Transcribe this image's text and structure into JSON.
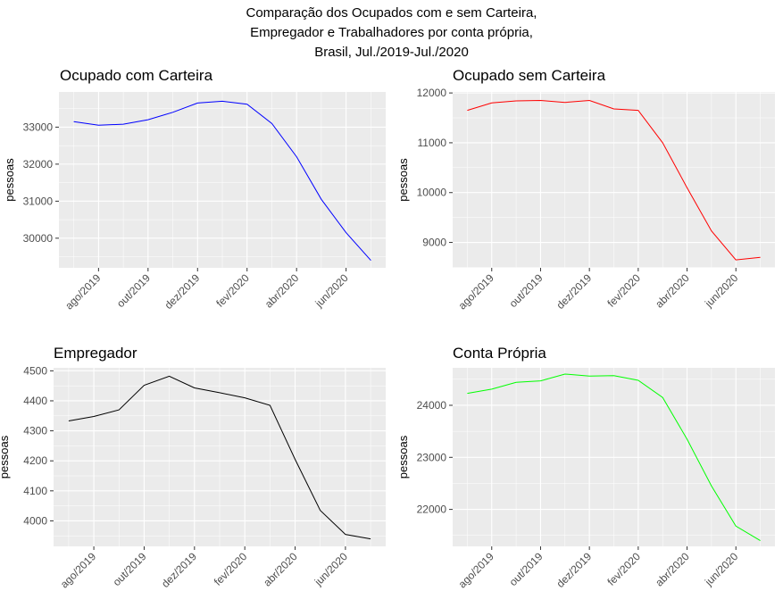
{
  "figure": {
    "title_lines": [
      "Comparação dos Ocupados com e sem Carteira,",
      "Empregador e Trabalhadores por conta própria,",
      "Brasil, Jul./2019-Jul./2020"
    ]
  },
  "chart_data": [
    {
      "type": "line",
      "title": "Ocupado com Carteira",
      "xlabel": "",
      "ylabel": "pessoas",
      "color": "#0000ff",
      "x": [
        "2019-07",
        "2019-08",
        "2019-09",
        "2019-10",
        "2019-11",
        "2019-12",
        "2020-01",
        "2020-02",
        "2020-03",
        "2020-04",
        "2020-05",
        "2020-06",
        "2020-07"
      ],
      "values": [
        33150,
        33050,
        33080,
        33200,
        33400,
        33650,
        33700,
        33620,
        33100,
        32200,
        31050,
        30150,
        29400
      ],
      "yticks": [
        30000,
        31000,
        32000,
        33000
      ],
      "ylim": [
        29200,
        33950
      ],
      "xticks": [
        "ago/2019",
        "out/2019",
        "dez/2019",
        "fev/2020",
        "abr/2020",
        "jun/2020"
      ],
      "grid": true
    },
    {
      "type": "line",
      "title": "Ocupado sem Carteira",
      "xlabel": "",
      "ylabel": "pessoas",
      "color": "#ff0000",
      "x": [
        "2019-07",
        "2019-08",
        "2019-09",
        "2019-10",
        "2019-11",
        "2019-12",
        "2020-01",
        "2020-02",
        "2020-03",
        "2020-04",
        "2020-05",
        "2020-06",
        "2020-07"
      ],
      "values": [
        11650,
        11800,
        11840,
        11850,
        11810,
        11850,
        11680,
        11650,
        11000,
        10100,
        9230,
        8650,
        8700
      ],
      "yticks": [
        9000,
        10000,
        11000,
        12000
      ],
      "ylim": [
        8490,
        12020
      ],
      "xticks": [
        "ago/2019",
        "out/2019",
        "dez/2019",
        "fev/2020",
        "abr/2020",
        "jun/2020"
      ],
      "grid": true
    },
    {
      "type": "line",
      "title": "Empregador",
      "xlabel": "",
      "ylabel": "pessoas",
      "color": "#000000",
      "x": [
        "2019-07",
        "2019-08",
        "2019-09",
        "2019-10",
        "2019-11",
        "2019-12",
        "2020-01",
        "2020-02",
        "2020-03",
        "2020-04",
        "2020-05",
        "2020-06",
        "2020-07"
      ],
      "values": [
        4333,
        4348,
        4370,
        4452,
        4482,
        4443,
        4427,
        4410,
        4385,
        4205,
        4035,
        3955,
        3940
      ],
      "yticks": [
        4000,
        4100,
        4200,
        4300,
        4400,
        4500
      ],
      "ylim": [
        3915,
        4510
      ],
      "xticks": [
        "ago/2019",
        "out/2019",
        "dez/2019",
        "fev/2020",
        "abr/2020",
        "jun/2020"
      ],
      "grid": true
    },
    {
      "type": "line",
      "title": "Conta Própria",
      "xlabel": "",
      "ylabel": "pessoas",
      "color": "#00ff00",
      "x": [
        "2019-07",
        "2019-08",
        "2019-09",
        "2019-10",
        "2019-11",
        "2019-12",
        "2020-01",
        "2020-02",
        "2020-03",
        "2020-04",
        "2020-05",
        "2020-06",
        "2020-07"
      ],
      "values": [
        24230,
        24310,
        24440,
        24470,
        24600,
        24560,
        24570,
        24480,
        24150,
        23350,
        22450,
        21680,
        21400
      ],
      "yticks": [
        22000,
        23000,
        24000
      ],
      "ylim": [
        21290,
        24720
      ],
      "xticks": [
        "ago/2019",
        "out/2019",
        "dez/2019",
        "fev/2020",
        "abr/2020",
        "jun/2020"
      ],
      "grid": true
    }
  ]
}
